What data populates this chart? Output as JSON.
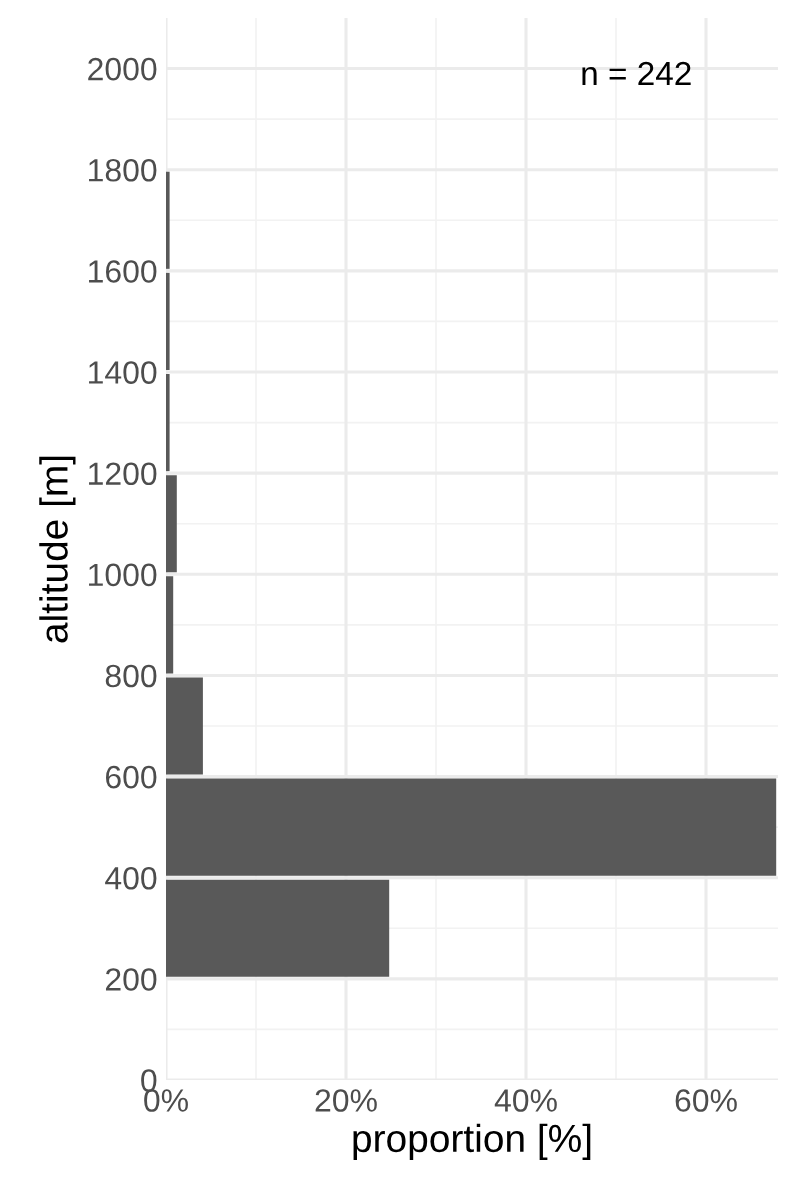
{
  "chart_data": {
    "type": "histogram",
    "orientation": "horizontal",
    "xlabel": "proportion [%]",
    "ylabel": "altitude [m]",
    "annotations": [
      "n = 242"
    ],
    "bins": [
      200,
      400,
      600,
      800,
      1000,
      1200,
      1400,
      1600,
      1800
    ],
    "values": [
      24.8,
      67.8,
      4.1,
      0.8,
      1.2,
      0.4,
      0.4,
      0.4
    ],
    "color": "#595959",
    "xlim": [
      0,
      68
    ],
    "xticks": [
      {
        "value": 0,
        "label": "0%"
      },
      {
        "value": 20,
        "label": "20%"
      },
      {
        "value": 40,
        "label": "40%"
      },
      {
        "value": 60,
        "label": "60%"
      }
    ],
    "ylim": [
      0,
      2100
    ],
    "yticks": [
      0,
      200,
      400,
      600,
      800,
      1000,
      1200,
      1400,
      1600,
      1800,
      2000
    ],
    "grid": true
  }
}
